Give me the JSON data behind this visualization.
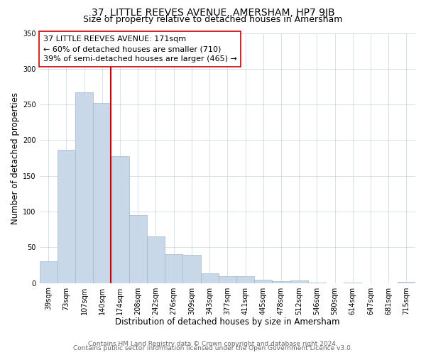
{
  "title": "37, LITTLE REEVES AVENUE, AMERSHAM, HP7 9JB",
  "subtitle": "Size of property relative to detached houses in Amersham",
  "xlabel": "Distribution of detached houses by size in Amersham",
  "ylabel": "Number of detached properties",
  "bar_labels": [
    "39sqm",
    "73sqm",
    "107sqm",
    "140sqm",
    "174sqm",
    "208sqm",
    "242sqm",
    "276sqm",
    "309sqm",
    "343sqm",
    "377sqm",
    "411sqm",
    "445sqm",
    "478sqm",
    "512sqm",
    "546sqm",
    "580sqm",
    "614sqm",
    "647sqm",
    "681sqm",
    "715sqm"
  ],
  "bar_values": [
    30,
    186,
    267,
    252,
    178,
    95,
    65,
    40,
    39,
    14,
    10,
    10,
    5,
    3,
    4,
    1,
    0,
    1,
    0,
    0,
    2
  ],
  "bar_color": "#c8d8e8",
  "bar_edge_color": "#a0b8cc",
  "vline_index": 4,
  "vline_color": "#cc0000",
  "annotation_text": "37 LITTLE REEVES AVENUE: 171sqm\n← 60% of detached houses are smaller (710)\n39% of semi-detached houses are larger (465) →",
  "annotation_box_color": "#ffffff",
  "annotation_box_edge": "#cc0000",
  "ylim": [
    0,
    350
  ],
  "yticks": [
    0,
    50,
    100,
    150,
    200,
    250,
    300,
    350
  ],
  "footer_line1": "Contains HM Land Registry data © Crown copyright and database right 2024.",
  "footer_line2": "Contains public sector information licensed under the Open Government Licence v3.0.",
  "title_fontsize": 10,
  "subtitle_fontsize": 9,
  "axis_label_fontsize": 8.5,
  "tick_fontsize": 7,
  "annotation_fontsize": 8,
  "footer_fontsize": 6.5
}
